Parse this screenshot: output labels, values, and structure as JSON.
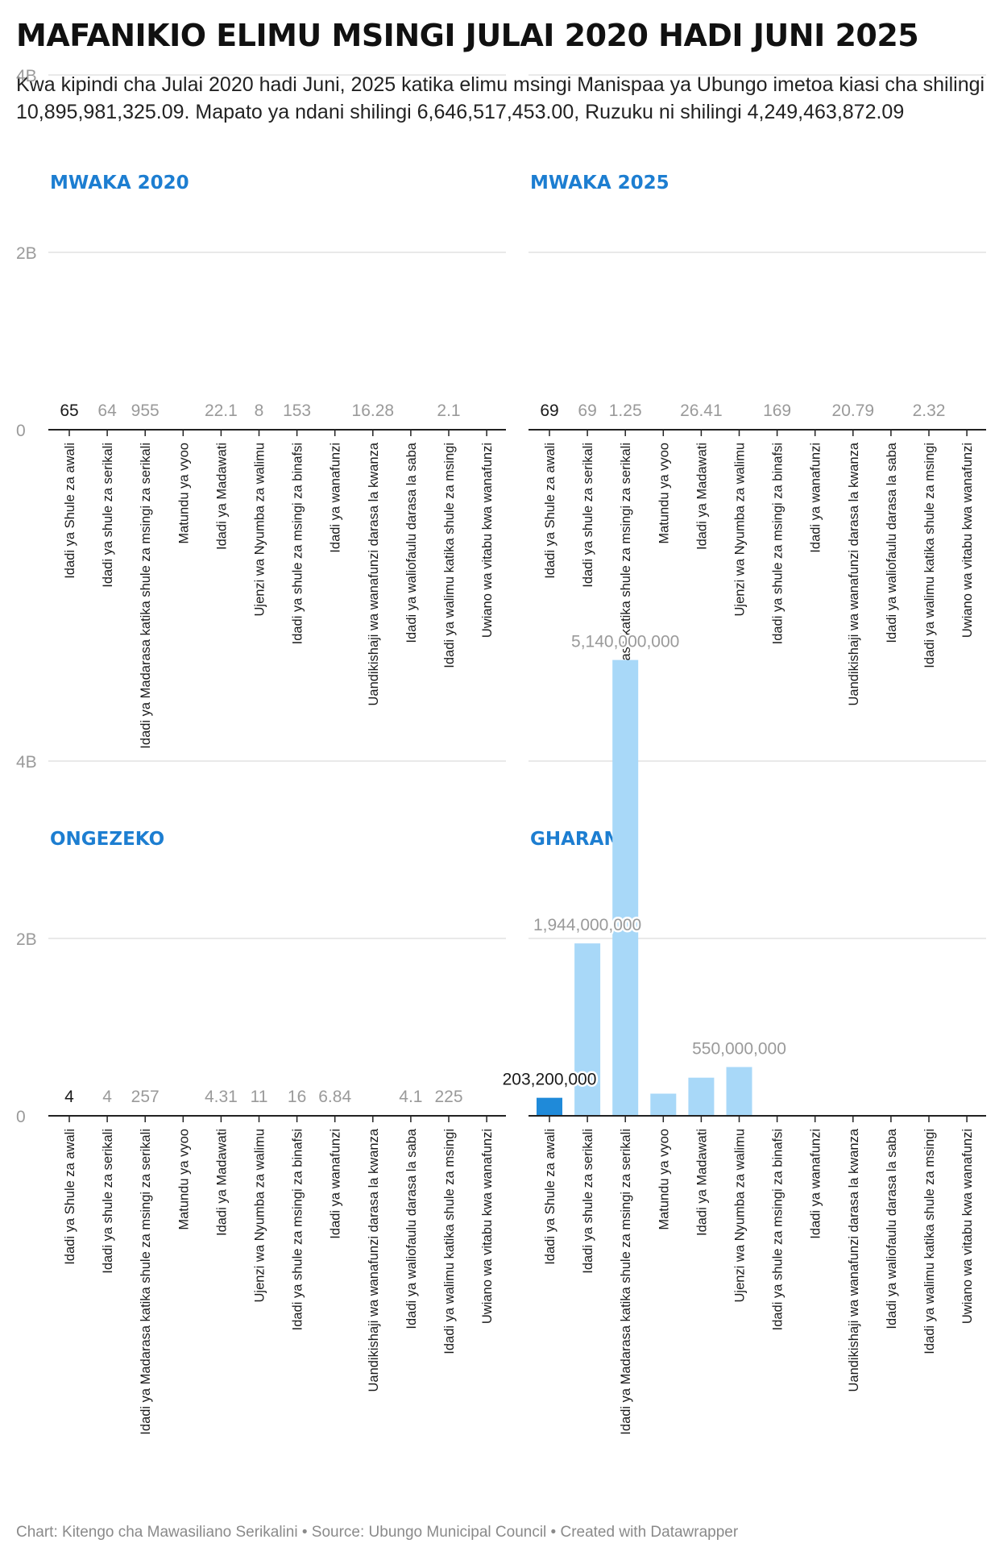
{
  "title": "MAFANIKIO ELIMU MSINGI JULAI 2020 HADI JUNI 2025",
  "description": "Kwa kipindi cha Julai 2020 hadi Juni, 2025 katika elimu msingi Manispaa ya Ubungo imetoa kiasi cha shilingi 10,895,981,325.09. Mapato ya ndani shilingi 6,646,517,453.00, Ruzuku ni shilingi 4,249,463,872.09",
  "footer": "Chart: Kitengo cha Mawasiliano Serikalini • Source: Ubungo Municipal Council • Created with Datawrapper",
  "colors": {
    "accent": "#1d7ed1",
    "bar_highlight": "#1f8ad9",
    "bar": "#a8d8f8",
    "grid": "#e2e2e2",
    "axis": "#222222",
    "muted_label": "#9a9a9a"
  },
  "chart_data": [
    {
      "type": "bar",
      "title": "MWAKA 2020",
      "categories": [
        "Idadi ya Shule za awali",
        "Idadi ya shule za serikali",
        "Idadi ya Madarasa katika shule za msingi za serikali",
        "Matundu ya vyoo",
        "Idadi ya Madawati",
        "Ujenzi wa Nyumba za walimu",
        "Idadi ya shule za msingi za binafsi",
        "Idadi ya wanafunzi",
        "Uandikishaji wa wanafunzi darasa la kwanza",
        "Idadi ya waliofaulu darasa la saba",
        "Idadi ya walimu katika shule za msingi",
        "Uwiano wa vitabu kwa wanafunzi"
      ],
      "values": [
        65,
        64,
        955,
        null,
        22.1,
        8,
        153,
        null,
        16.28,
        null,
        2.1,
        null
      ],
      "value_labels": [
        "65",
        "64",
        "955",
        "",
        "22.1",
        "8",
        "153",
        "",
        "16.28",
        "",
        "2.1",
        ""
      ],
      "yticks": [
        "0",
        "2B",
        "4B"
      ],
      "ylim": [
        0,
        5500000000
      ]
    },
    {
      "type": "bar",
      "title": "MWAKA 2025",
      "categories": [
        "Idadi ya Shule za awali",
        "Idadi ya shule za serikali",
        "Idadi ya Madarasa katika shule za msingi za serikali",
        "Matundu ya vyoo",
        "Idadi ya Madawati",
        "Ujenzi wa Nyumba za walimu",
        "Idadi ya shule za msingi za binafsi",
        "Idadi ya wanafunzi",
        "Uandikishaji wa wanafunzi darasa la kwanza",
        "Idadi ya waliofaulu darasa la saba",
        "Idadi ya walimu katika shule za msingi",
        "Uwiano wa vitabu kwa wanafunzi"
      ],
      "values": [
        69,
        69,
        1.25,
        null,
        26.41,
        null,
        169,
        null,
        20.79,
        null,
        2.32,
        null
      ],
      "value_labels": [
        "69",
        "69",
        "1.25",
        "",
        "26.41",
        "",
        "169",
        "",
        "20.79",
        "",
        "2.32",
        ""
      ],
      "yticks": [],
      "ylim": [
        0,
        5500000000
      ]
    },
    {
      "type": "bar",
      "title": "ONGEZEKO",
      "categories": [
        "Idadi ya Shule za awali",
        "Idadi ya shule za serikali",
        "Idadi ya Madarasa katika shule za msingi za serikali",
        "Matundu ya vyoo",
        "Idadi ya Madawati",
        "Ujenzi wa Nyumba za walimu",
        "Idadi ya shule za msingi za binafsi",
        "Idadi ya wanafunzi",
        "Uandikishaji wa wanafunzi darasa la kwanza",
        "Idadi ya waliofaulu darasa la saba",
        "Idadi ya walimu katika shule za msingi",
        "Uwiano wa vitabu kwa wanafunzi"
      ],
      "values": [
        4,
        4,
        257,
        null,
        4.31,
        11,
        16,
        6.84,
        null,
        4.1,
        225,
        null
      ],
      "value_labels": [
        "4",
        "4",
        "257",
        "",
        "4.31",
        "11",
        "16",
        "6.84",
        "",
        "4.1",
        "225",
        ""
      ],
      "yticks": [
        "0",
        "2B",
        "4B"
      ],
      "ylim": [
        0,
        5500000000
      ]
    },
    {
      "type": "bar",
      "title": "GHARAMA",
      "categories": [
        "Idadi ya Shule za awali",
        "Idadi ya shule za serikali",
        "Idadi ya Madarasa katika shule za msingi za serikali",
        "Matundu ya vyoo",
        "Idadi ya Madawati",
        "Ujenzi wa Nyumba za walimu",
        "Idadi ya shule za msingi za binafsi",
        "Idadi ya wanafunzi",
        "Uandikishaji wa wanafunzi darasa la kwanza",
        "Idadi ya waliofaulu darasa la saba",
        "Idadi ya walimu katika shule za msingi",
        "Uwiano wa vitabu kwa wanafunzi"
      ],
      "values": [
        203200000,
        1944000000,
        5140000000,
        250000000,
        430000000,
        550000000,
        null,
        null,
        null,
        null,
        null,
        null
      ],
      "value_labels": [
        "203,200,000",
        "1,944,000,000",
        "5,140,000,000",
        "",
        "",
        "550,000,000",
        "",
        "",
        "",
        "",
        "",
        ""
      ],
      "yticks": [],
      "ylim": [
        0,
        5500000000
      ]
    }
  ]
}
